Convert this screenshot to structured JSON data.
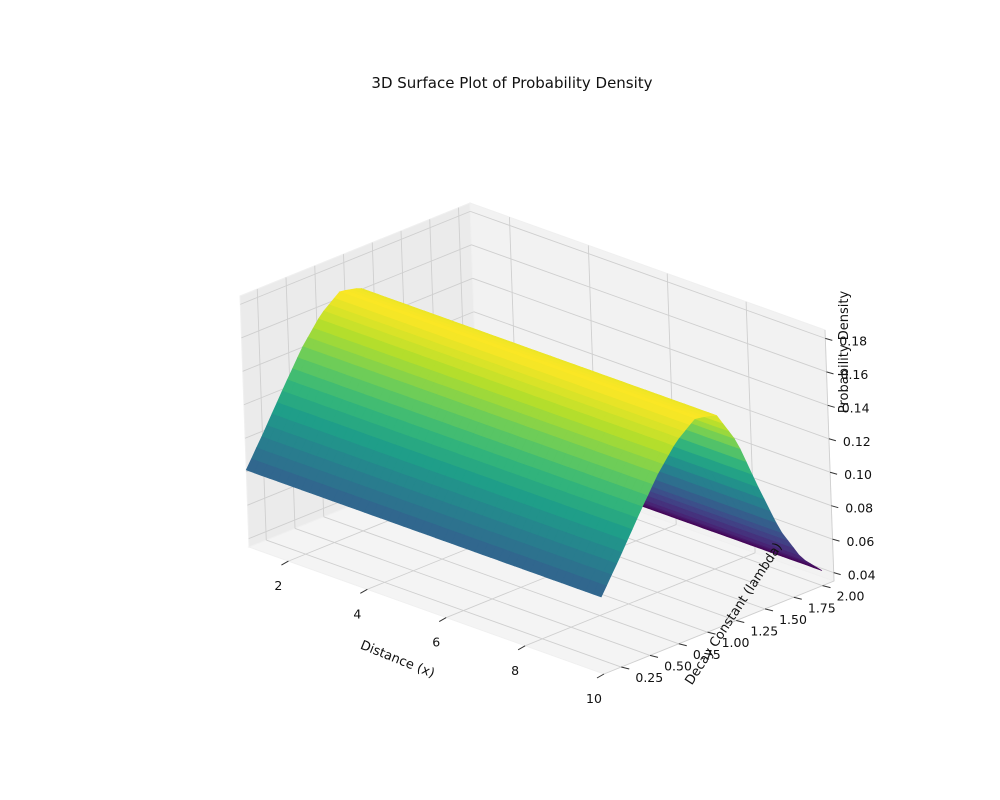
{
  "chart_data": {
    "type": "surface",
    "title": "3D Surface Plot of Probability Density",
    "xlabel": "Distance (x)",
    "ylabel": "Decay Constant (lambda)",
    "zlabel": "Probability Density",
    "x_ticks": [
      "2",
      "4",
      "6",
      "8",
      "10"
    ],
    "y_ticks": [
      "0.25",
      "0.50",
      "0.75",
      "1.00",
      "1.25",
      "1.50",
      "1.75",
      "2.00"
    ],
    "z_ticks": [
      "0.04",
      "0.06",
      "0.08",
      "0.10",
      "0.12",
      "0.14",
      "0.16",
      "0.18"
    ],
    "xlim": [
      1,
      10
    ],
    "ylim": [
      0.1,
      2.1
    ],
    "zlim": [
      0.035,
      0.185
    ],
    "colormap": "viridis",
    "surface": {
      "x_range": [
        1,
        10
      ],
      "lambda_range": [
        0.1,
        2.0
      ],
      "profile_along_lambda": [
        {
          "lambda": 0.1,
          "z": 0.081
        },
        {
          "lambda": 0.27,
          "z": 0.1
        },
        {
          "lambda": 0.45,
          "z": 0.121
        },
        {
          "lambda": 0.62,
          "z": 0.14
        },
        {
          "lambda": 0.79,
          "z": 0.155
        },
        {
          "lambda": 0.96,
          "z": 0.164
        },
        {
          "lambda": 1.14,
          "z": 0.161
        },
        {
          "lambda": 1.31,
          "z": 0.14
        },
        {
          "lambda": 1.48,
          "z": 0.108
        },
        {
          "lambda": 1.65,
          "z": 0.078
        },
        {
          "lambda": 1.83,
          "z": 0.056
        },
        {
          "lambda": 2.0,
          "z": 0.044
        }
      ]
    },
    "grid": true
  }
}
